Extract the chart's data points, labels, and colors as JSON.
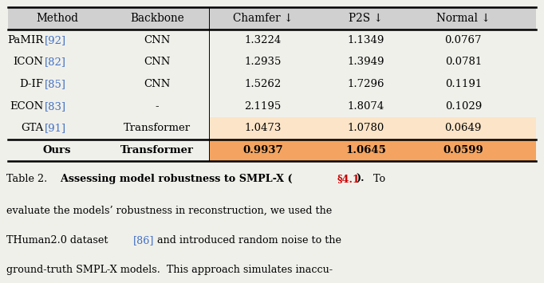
{
  "headers": [
    "Method",
    "Backbone",
    "Chamfer ↓",
    "P2S ↓",
    "Normal ↓"
  ],
  "rows": [
    [
      "PaMIR",
      "[92]",
      "CNN",
      "1.3224",
      "1.1349",
      "0.0767"
    ],
    [
      "ICON",
      "[82]",
      "CNN",
      "1.2935",
      "1.3949",
      "0.0781"
    ],
    [
      "D-IF",
      "[85]",
      "CNN",
      "1.5262",
      "1.7296",
      "0.1191"
    ],
    [
      "ECON",
      "[83]",
      "-",
      "2.1195",
      "1.8074",
      "0.1029"
    ],
    [
      "GTA",
      "[91]",
      "Transformer",
      "1.0473",
      "1.0780",
      "0.0649"
    ],
    [
      "Ours",
      "",
      "Transformer",
      "0.9937",
      "1.0645",
      "0.0599"
    ]
  ],
  "highlight_rows": [
    4,
    5
  ],
  "highlight_light": "#fce4c8",
  "highlight_dark": "#f4a460",
  "ours_row": 5,
  "citation_color": "#4472c4",
  "header_bg": "#d0d0d0",
  "bg_color": "#f0f0eb",
  "caption_section_color": "#cc0000",
  "caption_ref_color": "#4472c4"
}
